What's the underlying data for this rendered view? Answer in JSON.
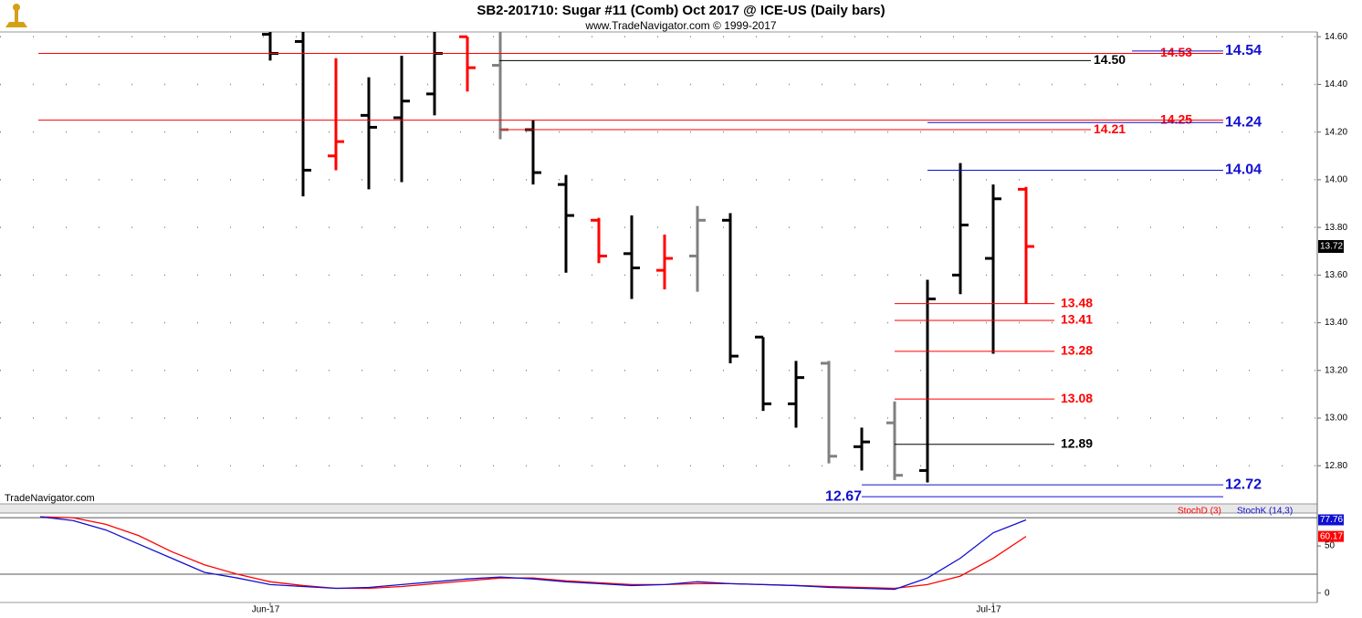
{
  "chart_data": [
    {
      "type": "ohlc",
      "title": "SB2-201710:  Sugar #11 (Comb) Oct 2017 @ ICE-US  (Daily bars)",
      "subtitle": "www.TradeNavigator.com © 1999-2017",
      "watermark": "TradeNavigator.com",
      "open": [
        null,
        null,
        null,
        null,
        null,
        null,
        null,
        14.61,
        14.58,
        14.1,
        14.27,
        14.26,
        14.36,
        14.6,
        14.48,
        14.21,
        13.98,
        13.83,
        13.69,
        13.62,
        13.68,
        13.83,
        13.34,
        13.06,
        13.23,
        12.88,
        12.98,
        12.78,
        13.6,
        13.67,
        13.96
      ],
      "high": [
        null,
        null,
        null,
        null,
        null,
        null,
        null,
        14.7,
        14.7,
        14.51,
        14.43,
        14.52,
        14.7,
        14.6,
        14.7,
        14.25,
        14.02,
        13.84,
        13.85,
        13.77,
        13.89,
        13.86,
        13.34,
        13.24,
        13.24,
        12.96,
        13.07,
        13.58,
        14.07,
        13.98,
        13.97
      ],
      "low": [
        null,
        null,
        null,
        null,
        null,
        null,
        null,
        14.5,
        13.93,
        14.04,
        13.96,
        13.99,
        14.27,
        14.37,
        14.17,
        13.98,
        13.61,
        13.65,
        13.5,
        13.54,
        13.53,
        13.23,
        13.03,
        12.96,
        12.81,
        12.78,
        12.74,
        12.73,
        13.52,
        13.27,
        13.48
      ],
      "close": [
        null,
        null,
        null,
        null,
        null,
        null,
        null,
        14.53,
        14.04,
        14.16,
        14.22,
        14.33,
        14.53,
        14.47,
        14.21,
        14.03,
        13.85,
        13.68,
        13.63,
        13.67,
        13.83,
        13.26,
        13.06,
        13.17,
        12.84,
        12.9,
        12.76,
        13.5,
        13.81,
        13.92,
        13.72
      ],
      "bar_colors": [
        null,
        null,
        null,
        null,
        null,
        null,
        null,
        "#000000",
        "#000000",
        "#ff0000",
        "#000000",
        "#000000",
        "#000000",
        "#ff0000",
        "#808080",
        "#000000",
        "#000000",
        "#ff0000",
        "#000000",
        "#ff0000",
        "#808080",
        "#000000",
        "#000000",
        "#000000",
        "#808080",
        "#000000",
        "#808080",
        "#000000",
        "#000000",
        "#000000",
        "#ff0000"
      ],
      "levels": [
        {
          "value": 14.53,
          "label": "14.53",
          "color": "#ff0000"
        },
        {
          "value": 14.54,
          "label": "14.54",
          "color": "#1010d0"
        },
        {
          "value": 14.5,
          "label": "14.50",
          "color": "#000000"
        },
        {
          "value": 14.25,
          "label": "14.25",
          "color": "#ff0000"
        },
        {
          "value": 14.24,
          "label": "14.24",
          "color": "#1010d0"
        },
        {
          "value": 14.21,
          "label": "14.21",
          "color": "#ff0000"
        },
        {
          "value": 14.04,
          "label": "14.04",
          "color": "#1010d0"
        },
        {
          "value": 13.48,
          "label": "13.48",
          "color": "#ff0000"
        },
        {
          "value": 13.41,
          "label": "13.41",
          "color": "#ff0000"
        },
        {
          "value": 13.28,
          "label": "13.28",
          "color": "#ff0000"
        },
        {
          "value": 13.08,
          "label": "13.08",
          "color": "#ff0000"
        },
        {
          "value": 12.89,
          "label": "12.89",
          "color": "#000000"
        },
        {
          "value": 12.72,
          "label": "12.72",
          "color": "#1010d0"
        },
        {
          "value": 12.67,
          "label": "12.67",
          "color": "#1010d0"
        }
      ],
      "ylim": [
        12.64,
        14.62
      ],
      "yticks": [
        {
          "value": 12.8,
          "label": "12.80"
        },
        {
          "value": 13.0,
          "label": "13.00"
        },
        {
          "value": 13.2,
          "label": "13.20"
        },
        {
          "value": 13.4,
          "label": "13.40"
        },
        {
          "value": 13.6,
          "label": "13.60"
        },
        {
          "value": 13.8,
          "label": "13.80"
        },
        {
          "value": 14.0,
          "label": "14.00"
        },
        {
          "value": 14.2,
          "label": "14.20"
        },
        {
          "value": 14.4,
          "label": "14.40"
        },
        {
          "value": 14.6,
          "label": "14.60"
        }
      ],
      "grid": true
    },
    {
      "type": "line",
      "categories": [
        null,
        null,
        null,
        null,
        null,
        null,
        null,
        "Jun-17",
        null,
        null,
        null,
        null,
        null,
        null,
        null,
        null,
        null,
        null,
        null,
        null,
        null,
        null,
        null,
        null,
        null,
        null,
        null,
        null,
        null,
        "Jul-17",
        null
      ],
      "series": [
        {
          "name": "StochD (3)",
          "color": "#ff0000",
          "values": [
            81,
            80,
            73,
            61,
            44,
            30,
            20,
            12,
            8,
            5,
            5,
            7,
            10,
            13,
            16,
            16,
            13,
            11,
            9,
            9,
            10,
            10,
            9,
            8,
            7,
            6,
            5,
            9,
            18,
            37,
            60.17
          ]
        },
        {
          "name": "StochK (14,3)",
          "color": "#1010d0",
          "values": [
            81,
            77,
            67,
            52,
            37,
            22,
            16,
            9,
            7,
            5,
            6,
            9,
            12,
            15,
            17,
            15,
            12,
            10,
            8,
            9,
            12,
            10,
            9,
            8,
            6,
            5,
            4,
            16,
            37,
            64,
            77.76
          ]
        }
      ],
      "reference_lines": [
        20,
        80
      ],
      "ylim": [
        -10,
        85
      ],
      "yticks": [
        0,
        50
      ]
    }
  ]
}
